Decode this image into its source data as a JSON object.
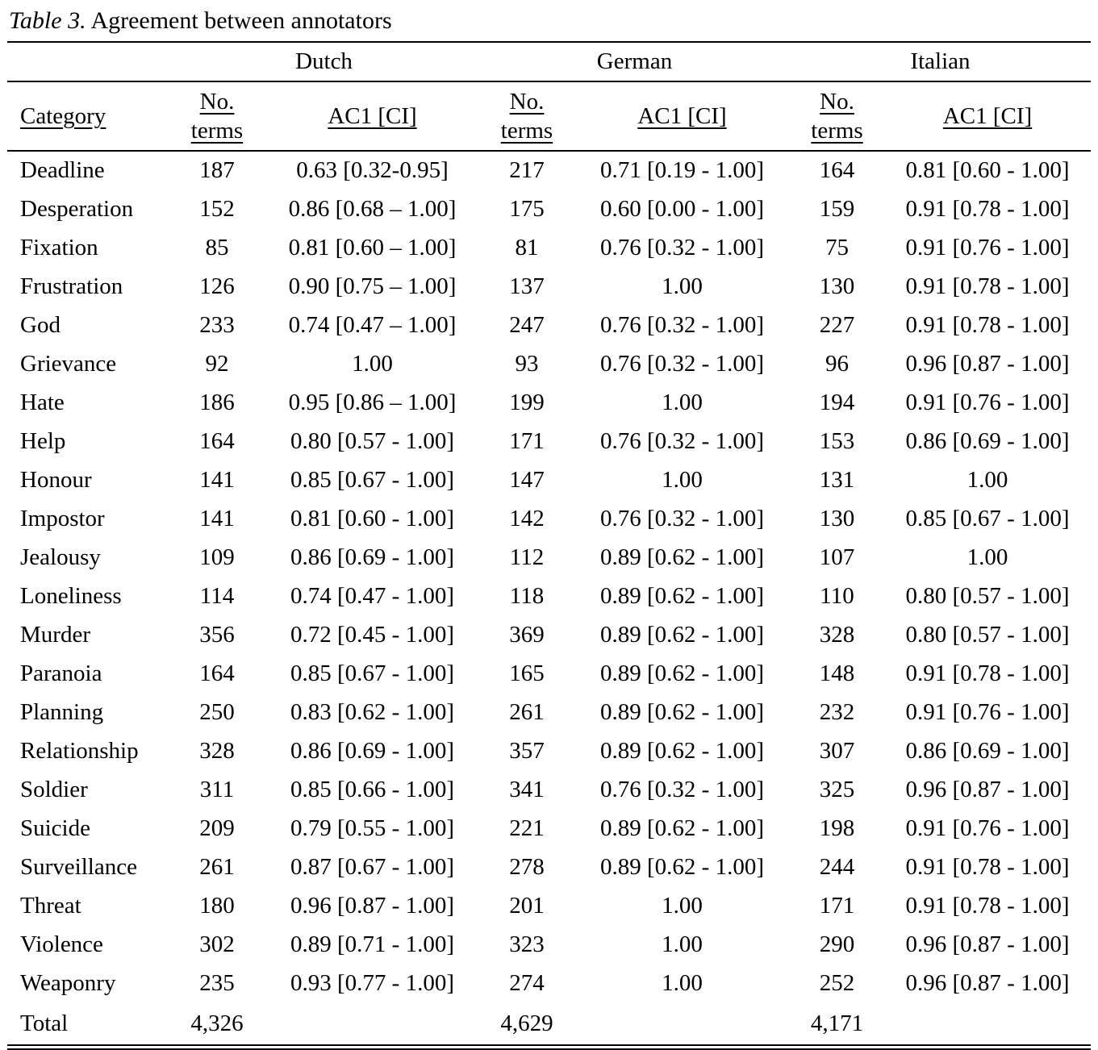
{
  "caption": {
    "label": "Table 3.",
    "title": " Agreement between annotators"
  },
  "languages": [
    "Dutch",
    "German",
    "Italian"
  ],
  "column_headers": {
    "category": "Category",
    "no_terms_line1": "No.",
    "no_terms_line2": "terms",
    "ac1": "AC1 [CI]"
  },
  "rows": [
    [
      "Deadline",
      "187",
      "0.63 [0.32-0.95]",
      "217",
      "0.71 [0.19 - 1.00]",
      "164",
      "0.81 [0.60 - 1.00]"
    ],
    [
      "Desperation",
      "152",
      "0.86 [0.68 – 1.00]",
      "175",
      "0.60 [0.00 - 1.00]",
      "159",
      "0.91 [0.78 - 1.00]"
    ],
    [
      "Fixation",
      "85",
      "0.81 [0.60 – 1.00]",
      "81",
      "0.76 [0.32 - 1.00]",
      "75",
      "0.91 [0.76 - 1.00]"
    ],
    [
      "Frustration",
      "126",
      "0.90 [0.75 – 1.00]",
      "137",
      "1.00",
      "130",
      "0.91 [0.78 - 1.00]"
    ],
    [
      "God",
      "233",
      "0.74 [0.47 – 1.00]",
      "247",
      "0.76 [0.32 - 1.00]",
      "227",
      "0.91 [0.78 - 1.00]"
    ],
    [
      "Grievance",
      "92",
      "1.00",
      "93",
      "0.76 [0.32 - 1.00]",
      "96",
      "0.96 [0.87 - 1.00]"
    ],
    [
      "Hate",
      "186",
      "0.95 [0.86 – 1.00]",
      "199",
      "1.00",
      "194",
      "0.91 [0.76 - 1.00]"
    ],
    [
      "Help",
      "164",
      "0.80 [0.57 - 1.00]",
      "171",
      "0.76 [0.32 - 1.00]",
      "153",
      "0.86 [0.69 - 1.00]"
    ],
    [
      "Honour",
      "141",
      "0.85 [0.67 - 1.00]",
      "147",
      "1.00",
      "131",
      "1.00"
    ],
    [
      "Impostor",
      "141",
      "0.81 [0.60 - 1.00]",
      "142",
      "0.76 [0.32 - 1.00]",
      "130",
      "0.85 [0.67 - 1.00]"
    ],
    [
      "Jealousy",
      "109",
      "0.86 [0.69 - 1.00]",
      "112",
      "0.89 [0.62 - 1.00]",
      "107",
      "1.00"
    ],
    [
      "Loneliness",
      "114",
      "0.74 [0.47 - 1.00]",
      "118",
      "0.89 [0.62 - 1.00]",
      "110",
      "0.80 [0.57 - 1.00]"
    ],
    [
      "Murder",
      "356",
      "0.72 [0.45 - 1.00]",
      "369",
      "0.89 [0.62 - 1.00]",
      "328",
      "0.80 [0.57 - 1.00]"
    ],
    [
      "Paranoia",
      "164",
      "0.85 [0.67 - 1.00]",
      "165",
      "0.89 [0.62 - 1.00]",
      "148",
      "0.91 [0.78 - 1.00]"
    ],
    [
      "Planning",
      "250",
      "0.83 [0.62 - 1.00]",
      "261",
      "0.89 [0.62 - 1.00]",
      "232",
      "0.91 [0.76 - 1.00]"
    ],
    [
      "Relationship",
      "328",
      "0.86 [0.69 - 1.00]",
      "357",
      "0.89 [0.62 - 1.00]",
      "307",
      "0.86 [0.69 - 1.00]"
    ],
    [
      "Soldier",
      "311",
      "0.85 [0.66 - 1.00]",
      "341",
      "0.76 [0.32 - 1.00]",
      "325",
      "0.96 [0.87 - 1.00]"
    ],
    [
      "Suicide",
      "209",
      "0.79 [0.55 - 1.00]",
      "221",
      "0.89 [0.62 - 1.00]",
      "198",
      "0.91 [0.76 - 1.00]"
    ],
    [
      "Surveillance",
      "261",
      "0.87 [0.67 - 1.00]",
      "278",
      "0.89 [0.62 - 1.00]",
      "244",
      "0.91 [0.78 - 1.00]"
    ],
    [
      "Threat",
      "180",
      "0.96 [0.87 - 1.00]",
      "201",
      "1.00",
      "171",
      "0.91 [0.78 - 1.00]"
    ],
    [
      "Violence",
      "302",
      "0.89 [0.71 - 1.00]",
      "323",
      "1.00",
      "290",
      "0.96 [0.87 - 1.00]"
    ],
    [
      "Weaponry",
      "235",
      "0.93 [0.77 - 1.00]",
      "274",
      "1.00",
      "252",
      "0.96 [0.87 - 1.00]"
    ]
  ],
  "total_row": [
    "Total",
    "4,326",
    "",
    "4,629",
    "",
    "4,171",
    ""
  ]
}
